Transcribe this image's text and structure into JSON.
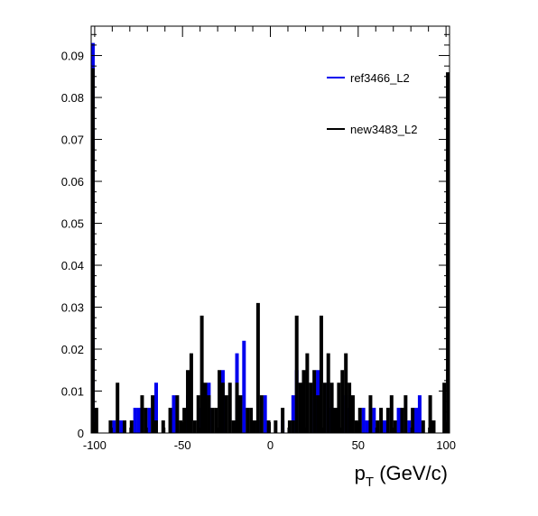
{
  "chart_data": {
    "type": "histogram",
    "title": "",
    "xlabel_main": "p",
    "xlabel_sub": "T",
    "xlabel_unit": " (GeV/c)",
    "ylabel": "",
    "xlim": [
      -102,
      102
    ],
    "ylim": [
      0,
      0.097
    ],
    "x_ticks": [
      -100,
      -50,
      0,
      50,
      100
    ],
    "x_tick_labels": [
      "-100",
      "-50",
      "0",
      "50",
      "100"
    ],
    "y_ticks": [
      0,
      0.01,
      0.02,
      0.03,
      0.04,
      0.05,
      0.06,
      0.07,
      0.08,
      0.09
    ],
    "y_tick_labels": [
      "0",
      "0.01",
      "0.02",
      "0.03",
      "0.04",
      "0.05",
      "0.06",
      "0.07",
      "0.08",
      "0.09"
    ],
    "grid": false,
    "legend_position": "top-right",
    "series": [
      {
        "name": "ref3466_L2",
        "color": "#0000ee",
        "points": [
          [
            -101,
            0.093
          ],
          [
            -89,
            0.003
          ],
          [
            -85,
            0.003
          ],
          [
            -77,
            0.006
          ],
          [
            -75,
            0.006
          ],
          [
            -69,
            0.006
          ],
          [
            -65,
            0.012
          ],
          [
            -55,
            0.009
          ],
          [
            -47,
            0.009
          ],
          [
            -39,
            0.006
          ],
          [
            -35,
            0.012
          ],
          [
            -27,
            0.015
          ],
          [
            -19,
            0.019
          ],
          [
            -15,
            0.022
          ],
          [
            -7,
            0.003
          ],
          [
            -3,
            0.009
          ],
          [
            7,
            0.003
          ],
          [
            13,
            0.009
          ],
          [
            15,
            0.015
          ],
          [
            25,
            0.012
          ],
          [
            27,
            0.015
          ],
          [
            33,
            0.012
          ],
          [
            35,
            0.006
          ],
          [
            43,
            0.009
          ],
          [
            45,
            0.006
          ],
          [
            53,
            0.006
          ],
          [
            55,
            0.003
          ],
          [
            59,
            0.006
          ],
          [
            65,
            0.003
          ],
          [
            73,
            0.006
          ],
          [
            79,
            0.003
          ],
          [
            83,
            0.006
          ],
          [
            85,
            0.009
          ],
          [
            101,
            0.003
          ]
        ]
      },
      {
        "name": "new3483_L2",
        "color": "#000000",
        "points": [
          [
            -101,
            0.087
          ],
          [
            -99,
            0.006
          ],
          [
            -91,
            0.003
          ],
          [
            -87,
            0.012
          ],
          [
            -83,
            0.003
          ],
          [
            -79,
            0.003
          ],
          [
            -73,
            0.009
          ],
          [
            -71,
            0.006
          ],
          [
            -67,
            0.009
          ],
          [
            -65,
            0.003
          ],
          [
            -61,
            0.003
          ],
          [
            -57,
            0.006
          ],
          [
            -53,
            0.009
          ],
          [
            -51,
            0.003
          ],
          [
            -49,
            0.006
          ],
          [
            -47,
            0.015
          ],
          [
            -45,
            0.019
          ],
          [
            -43,
            0.003
          ],
          [
            -41,
            0.009
          ],
          [
            -39,
            0.028
          ],
          [
            -37,
            0.012
          ],
          [
            -35,
            0.009
          ],
          [
            -33,
            0.006
          ],
          [
            -31,
            0.006
          ],
          [
            -29,
            0.015
          ],
          [
            -27,
            0.012
          ],
          [
            -25,
            0.009
          ],
          [
            -23,
            0.012
          ],
          [
            -21,
            0.003
          ],
          [
            -19,
            0.012
          ],
          [
            -17,
            0.009
          ],
          [
            -13,
            0.006
          ],
          [
            -11,
            0.006
          ],
          [
            -9,
            0.003
          ],
          [
            -7,
            0.031
          ],
          [
            -5,
            0.009
          ],
          [
            -1,
            0.003
          ],
          [
            3,
            0.003
          ],
          [
            7,
            0.006
          ],
          [
            11,
            0.003
          ],
          [
            13,
            0.003
          ],
          [
            15,
            0.028
          ],
          [
            17,
            0.012
          ],
          [
            19,
            0.015
          ],
          [
            21,
            0.019
          ],
          [
            23,
            0.012
          ],
          [
            25,
            0.015
          ],
          [
            27,
            0.009
          ],
          [
            29,
            0.028
          ],
          [
            31,
            0.012
          ],
          [
            33,
            0.019
          ],
          [
            35,
            0.012
          ],
          [
            37,
            0.006
          ],
          [
            39,
            0.012
          ],
          [
            41,
            0.015
          ],
          [
            43,
            0.019
          ],
          [
            45,
            0.012
          ],
          [
            47,
            0.009
          ],
          [
            49,
            0.003
          ],
          [
            51,
            0.006
          ],
          [
            57,
            0.009
          ],
          [
            61,
            0.003
          ],
          [
            63,
            0.006
          ],
          [
            67,
            0.006
          ],
          [
            69,
            0.009
          ],
          [
            71,
            0.003
          ],
          [
            75,
            0.006
          ],
          [
            77,
            0.009
          ],
          [
            81,
            0.006
          ],
          [
            87,
            0.003
          ],
          [
            91,
            0.009
          ],
          [
            93,
            0.003
          ],
          [
            99,
            0.012
          ],
          [
            101,
            0.086
          ]
        ]
      }
    ]
  }
}
